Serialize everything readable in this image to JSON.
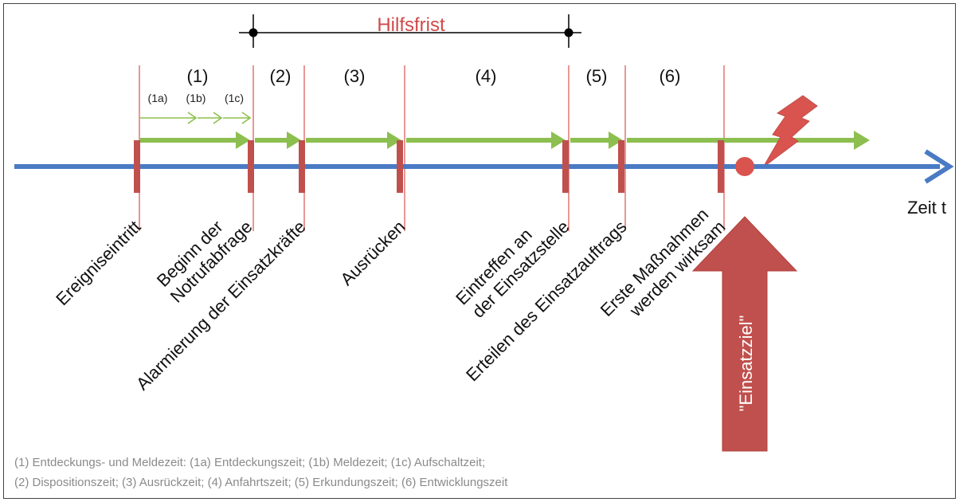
{
  "title": "Hilfsfrist",
  "time_axis_label": "Zeit t",
  "phases": [
    "(1)",
    "(2)",
    "(3)",
    "(4)",
    "(5)",
    "(6)"
  ],
  "subphases": [
    "(1a)",
    "(1b)",
    "(1c)"
  ],
  "events": [
    {
      "lines": [
        "Ereigniseintritt"
      ]
    },
    {
      "lines": [
        "Beginn der",
        "Notrufabfrage"
      ]
    },
    {
      "lines": [
        "Alarmierung der Einsatzkräfte"
      ]
    },
    {
      "lines": [
        "Ausrücken"
      ]
    },
    {
      "lines": [
        "Eintreffen an",
        "der Einsatzstelle"
      ]
    },
    {
      "lines": [
        "Erteilen des Einsatzauftrags"
      ]
    },
    {
      "lines": [
        "Erste Maßnahmen",
        "werden wirksam"
      ]
    }
  ],
  "goal_label": "\"Einsatzziel\"",
  "footnote": {
    "line1": "(1) Entdeckungs- und Meldezeit: (1a) Entdeckungszeit; (1b) Meldezeit; (1c) Aufschaltzeit;",
    "line2": "(2) Dispositionszeit; (3) Ausrückzeit; (4) Anfahrtszeit; (5) Erkundungszeit; (6) Entwicklungszeit"
  },
  "colors": {
    "axis": "#4a7ac4",
    "arrow": "#8cbf4f",
    "marker": "#c0504d",
    "title": "#d0494b",
    "footnote": "#8a8a8a"
  }
}
